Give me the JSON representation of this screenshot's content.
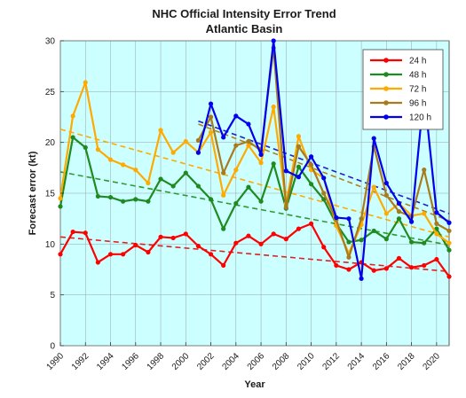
{
  "chart_data": {
    "type": "line",
    "title": "NHC Official Intensity Error Trend",
    "subtitle": "Atlantic Basin",
    "xlabel": "Year",
    "ylabel": "Forecast error (kt)",
    "xlim": [
      1990,
      2021
    ],
    "ylim": [
      0,
      30
    ],
    "x_ticks": [
      1990,
      1992,
      1994,
      1996,
      1998,
      2000,
      2002,
      2004,
      2006,
      2008,
      2010,
      2012,
      2014,
      2016,
      2018,
      2020
    ],
    "y_ticks": [
      0,
      5,
      10,
      15,
      20,
      25,
      30
    ],
    "grid": true,
    "legend_position": "top-right",
    "plot_background": "#ccffff",
    "series": [
      {
        "name": "24 h",
        "color": "#ff0000",
        "trend_color": "#e02020",
        "x": [
          1990,
          1991,
          1992,
          1993,
          1994,
          1995,
          1996,
          1997,
          1998,
          1999,
          2000,
          2001,
          2002,
          2003,
          2004,
          2005,
          2006,
          2007,
          2008,
          2009,
          2010,
          2011,
          2012,
          2013,
          2014,
          2015,
          2016,
          2017,
          2018,
          2019,
          2020,
          2021
        ],
        "values": [
          9.0,
          11.2,
          11.1,
          8.2,
          9.0,
          9.0,
          9.9,
          9.2,
          10.7,
          10.6,
          11.0,
          9.8,
          9.0,
          7.9,
          10.1,
          10.8,
          10.0,
          11.0,
          10.5,
          11.5,
          12.0,
          9.7,
          7.9,
          7.5,
          8.2,
          7.4,
          7.6,
          8.6,
          7.7,
          7.9,
          8.5,
          6.8
        ],
        "trend": [
          10.7,
          7.3
        ]
      },
      {
        "name": "48 h",
        "color": "#1f8a1f",
        "trend_color": "#2e9a2e",
        "x": [
          1990,
          1991,
          1992,
          1993,
          1994,
          1995,
          1996,
          1997,
          1998,
          1999,
          2000,
          2001,
          2002,
          2003,
          2004,
          2005,
          2006,
          2007,
          2008,
          2009,
          2010,
          2011,
          2012,
          2013,
          2014,
          2015,
          2016,
          2017,
          2018,
          2019,
          2020,
          2021
        ],
        "values": [
          13.7,
          20.5,
          19.5,
          14.7,
          14.6,
          14.2,
          14.4,
          14.2,
          16.4,
          15.7,
          17.0,
          15.7,
          14.4,
          11.5,
          14.0,
          15.6,
          14.2,
          17.9,
          13.5,
          17.6,
          15.9,
          14.4,
          12.0,
          10.2,
          10.4,
          11.3,
          10.5,
          12.5,
          10.2,
          10.1,
          11.5,
          9.4
        ],
        "trend": [
          17.1,
          9.9
        ]
      },
      {
        "name": "72 h",
        "color": "#ffaa00",
        "trend_color": "#ffaa00",
        "x": [
          1990,
          1991,
          1992,
          1993,
          1994,
          1995,
          1996,
          1997,
          1998,
          1999,
          2000,
          2001,
          2002,
          2003,
          2004,
          2005,
          2006,
          2007,
          2008,
          2009,
          2010,
          2011,
          2012,
          2013,
          2014,
          2015,
          2016,
          2017,
          2018,
          2019,
          2020,
          2021
        ],
        "values": [
          14.5,
          22.6,
          25.9,
          19.3,
          18.3,
          17.8,
          17.3,
          16.0,
          21.2,
          19.0,
          20.1,
          19.0,
          21.0,
          14.8,
          17.3,
          19.7,
          18.0,
          23.5,
          14.0,
          20.6,
          17.3,
          16.5,
          11.8,
          9.1,
          11.9,
          15.6,
          13.0,
          14.0,
          12.8,
          13.0,
          11.0,
          10.1
        ],
        "trend": [
          21.3,
          10.7
        ]
      },
      {
        "name": "96 h",
        "color": "#a87b1c",
        "trend_color": "#b08020",
        "x": [
          2001,
          2002,
          2003,
          2004,
          2005,
          2006,
          2007,
          2008,
          2009,
          2010,
          2011,
          2012,
          2013,
          2014,
          2015,
          2016,
          2017,
          2018,
          2019,
          2020,
          2021
        ],
        "values": [
          20.2,
          22.5,
          17.0,
          19.7,
          20.1,
          19.2,
          29.3,
          13.6,
          19.6,
          17.8,
          15.0,
          12.4,
          8.7,
          12.5,
          19.6,
          14.8,
          13.2,
          12.7,
          17.3,
          12.0,
          11.3
        ],
        "trend": [
          21.8,
          12.3
        ]
      },
      {
        "name": "120 h",
        "color": "#0000ee",
        "trend_color": "#2020cc",
        "x": [
          2001,
          2002,
          2003,
          2004,
          2005,
          2006,
          2007,
          2008,
          2009,
          2010,
          2011,
          2012,
          2013,
          2014,
          2015,
          2016,
          2017,
          2018,
          2019,
          2020,
          2021
        ],
        "values": [
          19.0,
          23.8,
          20.5,
          22.6,
          21.8,
          18.8,
          30.0,
          17.2,
          16.6,
          18.6,
          16.5,
          12.6,
          12.5,
          6.6,
          20.4,
          16.0,
          14.0,
          12.2,
          25.0,
          13.1,
          12.1
        ],
        "trend": [
          22.1,
          13.0
        ]
      }
    ]
  }
}
